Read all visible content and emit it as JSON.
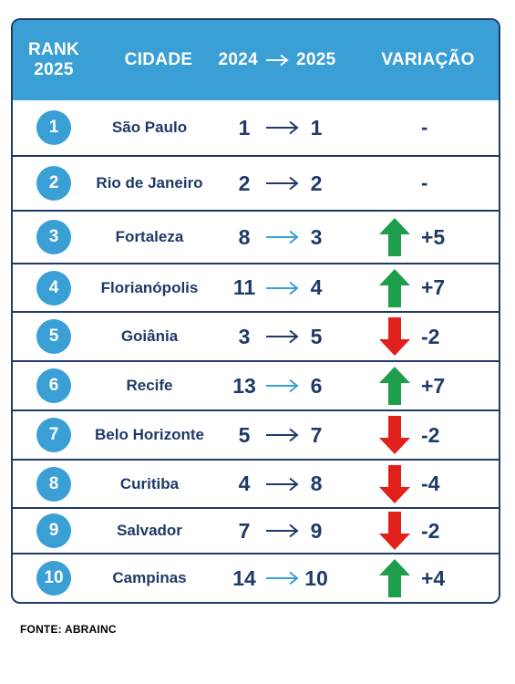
{
  "header": {
    "rank_line1": "RANK",
    "rank_line2": "2025",
    "city": "CIDADE",
    "year_from": "2024",
    "year_to": "2025",
    "variation": "VARIAÇÃO"
  },
  "colors": {
    "header_bg": "#3a9fd5",
    "rank_circle": "#3a9fd5",
    "text_navy": "#1f3a68",
    "up_green": "#1e9e4a",
    "down_red": "#e0201b"
  },
  "rows": [
    {
      "rank": "1",
      "city": "São Paulo",
      "y2024": "1",
      "y2025": "1",
      "trend": "same",
      "variation": "-"
    },
    {
      "rank": "2",
      "city": "Rio de Janeiro",
      "y2024": "2",
      "y2025": "2",
      "trend": "same",
      "variation": "-"
    },
    {
      "rank": "3",
      "city": "Fortaleza",
      "y2024": "8",
      "y2025": "3",
      "trend": "up",
      "variation": "+5"
    },
    {
      "rank": "4",
      "city": "Florianópolis",
      "y2024": "11",
      "y2025": "4",
      "trend": "up",
      "variation": "+7"
    },
    {
      "rank": "5",
      "city": "Goiânia",
      "y2024": "3",
      "y2025": "5",
      "trend": "down",
      "variation": "-2"
    },
    {
      "rank": "6",
      "city": "Recife",
      "y2024": "13",
      "y2025": "6",
      "trend": "up",
      "variation": "+7"
    },
    {
      "rank": "7",
      "city": "Belo Horizonte",
      "y2024": "5",
      "y2025": "7",
      "trend": "down",
      "variation": "-2"
    },
    {
      "rank": "8",
      "city": "Curitiba",
      "y2024": "4",
      "y2025": "8",
      "trend": "down",
      "variation": "-4"
    },
    {
      "rank": "9",
      "city": "Salvador",
      "y2024": "7",
      "y2025": "9",
      "trend": "down",
      "variation": "-2"
    },
    {
      "rank": "10",
      "city": "Campinas",
      "y2024": "14",
      "y2025": "10",
      "trend": "up",
      "variation": "+4"
    }
  ],
  "source": "FONTE: ABRAINC"
}
